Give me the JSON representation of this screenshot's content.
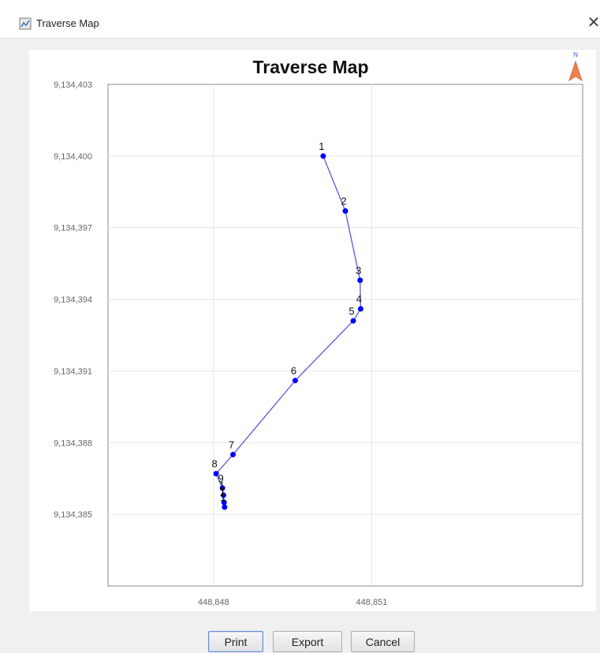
{
  "window": {
    "title": "Traverse Map",
    "close_glyph": "✕"
  },
  "buttons": {
    "print": "Print",
    "export": "Export",
    "cancel": "Cancel"
  },
  "north_arrow": {
    "label": "N",
    "icon": "north-arrow-icon"
  },
  "colors": {
    "series": "#0000ff",
    "line": "#5a5ad6",
    "grid": "#e6e6e6"
  },
  "chart_data": {
    "type": "line",
    "title": "Traverse Map",
    "xlim": [
      448846,
      448855
    ],
    "ylim": [
      9134382,
      9134403
    ],
    "x_ticks": [
      {
        "value": 448848,
        "label": "448,848"
      },
      {
        "value": 448851,
        "label": "448,851"
      }
    ],
    "y_ticks": [
      {
        "value": 9134403,
        "label": "9,134,403"
      },
      {
        "value": 9134400,
        "label": "9,134,400"
      },
      {
        "value": 9134397,
        "label": "9,134,397"
      },
      {
        "value": 9134394,
        "label": "9,134,394"
      },
      {
        "value": 9134391,
        "label": "9,134,391"
      },
      {
        "value": 9134388,
        "label": "9,134,388"
      },
      {
        "value": 9134385,
        "label": "9,134,385"
      }
    ],
    "grid": true,
    "points": [
      {
        "label": "1",
        "x": 448850.08,
        "y": 9134400.0
      },
      {
        "label": "2",
        "x": 448850.5,
        "y": 9134397.7
      },
      {
        "label": "3",
        "x": 448850.78,
        "y": 9134394.8
      },
      {
        "label": "4",
        "x": 448850.79,
        "y": 9134393.6
      },
      {
        "label": "5",
        "x": 448850.65,
        "y": 9134393.1
      },
      {
        "label": "6",
        "x": 448849.55,
        "y": 9134390.6
      },
      {
        "label": "7",
        "x": 448848.37,
        "y": 9134387.5
      },
      {
        "label": "8",
        "x": 448848.05,
        "y": 9134386.7
      },
      {
        "label": "9",
        "x": 448848.17,
        "y": 9134386.1
      },
      {
        "label": "1",
        "x": 448848.19,
        "y": 9134385.8
      },
      {
        "label": "1",
        "x": 448848.2,
        "y": 9134385.5
      },
      {
        "label": "1",
        "x": 448848.21,
        "y": 9134385.3
      }
    ]
  }
}
